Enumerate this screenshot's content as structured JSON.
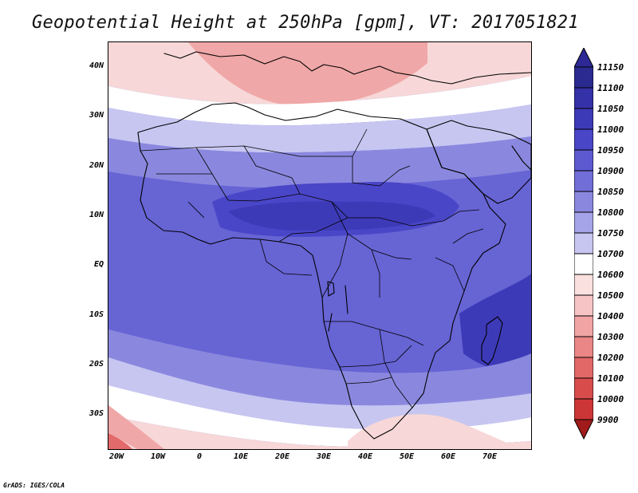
{
  "title": "Geopotential Height at 250hPa [gpm], VT: 2017051821",
  "credit": "GrADS: IGES/COLA",
  "map": {
    "lat_labels": [
      "40N",
      "30N",
      "20N",
      "10N",
      "EQ",
      "10S",
      "20S",
      "30S"
    ],
    "lon_labels": [
      "20W",
      "10W",
      "0",
      "10E",
      "20E",
      "30E",
      "40E",
      "50E",
      "60E",
      "70E"
    ]
  },
  "colorbar": {
    "levels": [
      "11150",
      "11100",
      "11050",
      "11000",
      "10950",
      "10900",
      "10850",
      "10800",
      "10750",
      "10700",
      "10600",
      "10500",
      "10400",
      "10300",
      "10200",
      "10100",
      "10000",
      "9900"
    ],
    "colors": {
      "top_triangle": "#2d2896",
      "bottom_triangle": "#a11b1b",
      "blues_dark_to_light": [
        "#2a2a90",
        "#3531a6",
        "#3d3ab8",
        "#4a46c8",
        "#5d5ad0",
        "#716ed7",
        "#8a88de",
        "#a6a4e8",
        "#c7c6f1"
      ],
      "white": "#ffffff",
      "reds_light_to_dark": [
        "#fbe0e0",
        "#f6c4c4",
        "#f0a4a4",
        "#ea8686",
        "#e26868",
        "#d84c4c",
        "#cd3636",
        "#b72424"
      ]
    }
  },
  "chart_data": {
    "type": "heatmap",
    "title": "Geopotential Height at 250hPa [gpm], VT: 2017051821",
    "x_range": [
      -22,
      80
    ],
    "y_range": [
      -37,
      45
    ],
    "units": "gpm",
    "contour_levels": [
      11150,
      11100,
      11050,
      11000,
      10950,
      10900,
      10850,
      10800,
      10750,
      10700,
      10600,
      10500,
      10400,
      10300,
      10200,
      10100,
      10000,
      9900
    ]
  }
}
